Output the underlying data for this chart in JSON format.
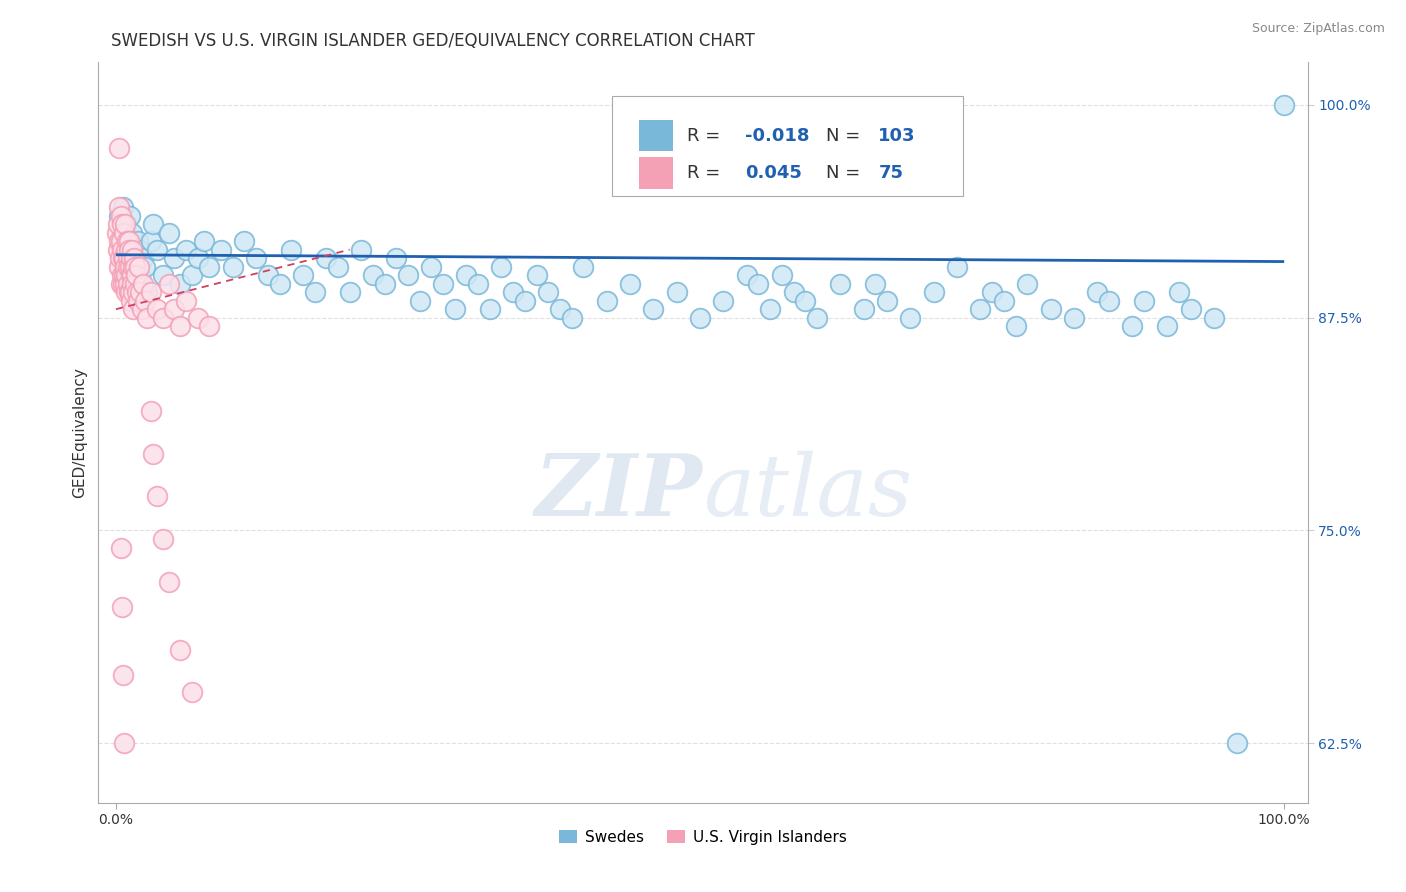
{
  "title": "SWEDISH VS U.S. VIRGIN ISLANDER GED/EQUIVALENCY CORRELATION CHART",
  "source": "Source: ZipAtlas.com",
  "ylabel": "GED/Equivalency",
  "blue_color": "#7ab8d9",
  "pink_color": "#f4a0b5",
  "blue_line_color": "#2060b0",
  "pink_line_color": "#d04060",
  "legend_r_blue": "-0.018",
  "legend_n_blue": "103",
  "legend_r_pink": "0.045",
  "legend_n_pink": "75",
  "watermark_zip": "ZIP",
  "watermark_atlas": "atlas",
  "background_color": "#ffffff",
  "title_fontsize": 12,
  "axis_label_fontsize": 11,
  "tick_fontsize": 10,
  "value_color": "#2060b0",
  "grid_color": "#cccccc"
}
